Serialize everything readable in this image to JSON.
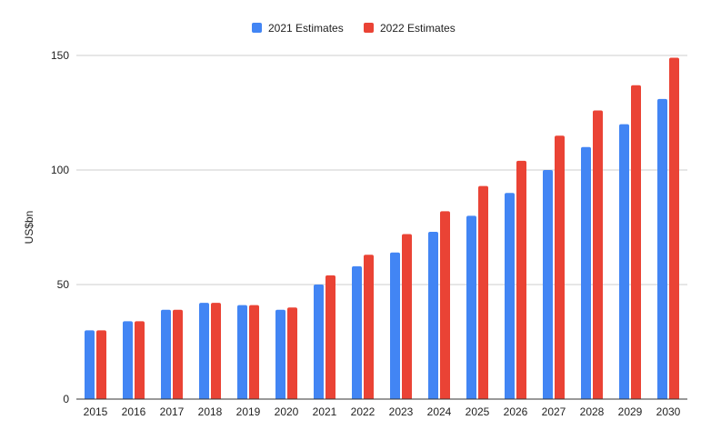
{
  "chart_data": {
    "type": "bar",
    "title": "",
    "xlabel": "",
    "ylabel": "US$bn",
    "ylim": [
      0,
      150
    ],
    "yticks": [
      0,
      50,
      100,
      150
    ],
    "grid": true,
    "legend_position": "top",
    "categories": [
      "2015",
      "2016",
      "2017",
      "2018",
      "2019",
      "2020",
      "2021",
      "2022",
      "2023",
      "2024",
      "2025",
      "2026",
      "2027",
      "2028",
      "2029",
      "2030"
    ],
    "series": [
      {
        "name": "2021 Estimates",
        "color": "#4285f4",
        "values": [
          30,
          34,
          39,
          42,
          41,
          39,
          50,
          58,
          64,
          73,
          80,
          90,
          100,
          110,
          120,
          131
        ]
      },
      {
        "name": "2022 Estimates",
        "color": "#ea4335",
        "values": [
          30,
          34,
          39,
          42,
          41,
          40,
          54,
          63,
          72,
          82,
          93,
          104,
          115,
          126,
          137,
          149
        ]
      }
    ]
  }
}
